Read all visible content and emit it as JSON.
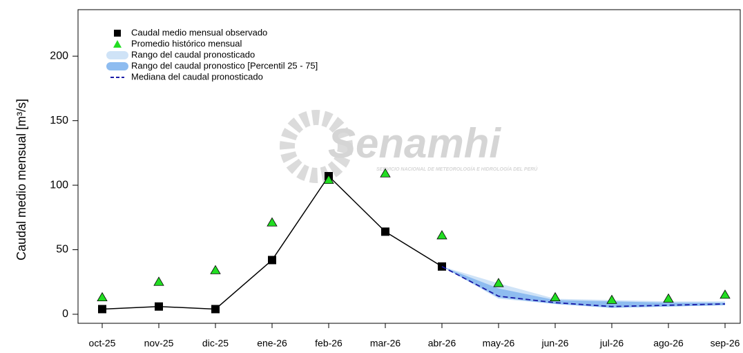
{
  "chart_data": {
    "type": "line",
    "ylabel": "Caudal medio mensual  [m³/s]",
    "watermark": {
      "title": "Senamhi",
      "subtitle": "SERVICIO NACIONAL DE METEOROLOGÍA E HIDROLOGÍA DEL PERÚ"
    },
    "categories": [
      "oct-25",
      "nov-25",
      "dic-25",
      "ene-26",
      "feb-26",
      "mar-26",
      "abr-26",
      "may-26",
      "jun-26",
      "jul-26",
      "ago-26",
      "sep-26"
    ],
    "ylim": [
      -7,
      236
    ],
    "yticks": [
      0,
      50,
      100,
      150,
      200
    ],
    "series": [
      {
        "name": "Caudal medio mensual observado",
        "style": "marker-line",
        "color": "#000000",
        "values": [
          4,
          6,
          4,
          42,
          107,
          64,
          37,
          null,
          null,
          null,
          null,
          null
        ]
      },
      {
        "name": "Promedio histórico mensual",
        "style": "triangle",
        "color": "#22dd22",
        "values": [
          13,
          25,
          34,
          71,
          104,
          109,
          61,
          24,
          13,
          11,
          12,
          15
        ]
      },
      {
        "name": "Rango del caudal pronosticado",
        "style": "band",
        "color": "#cfe3f7",
        "low": [
          null,
          null,
          null,
          null,
          null,
          null,
          37,
          12,
          8,
          5,
          6,
          7
        ],
        "high": [
          null,
          null,
          null,
          null,
          null,
          null,
          37,
          24,
          12,
          11,
          10,
          10
        ]
      },
      {
        "name": "Rango del caudal pronostico [Percentil 25 - 75]",
        "style": "band",
        "color": "#8ebcf0",
        "low": [
          null,
          null,
          null,
          null,
          null,
          null,
          37,
          13,
          8,
          5,
          6,
          7
        ],
        "high": [
          null,
          null,
          null,
          null,
          null,
          null,
          37,
          20,
          11,
          10,
          9,
          9
        ]
      },
      {
        "name": "Mediana del caudal pronosticado",
        "style": "dashed",
        "color": "#1a1aa6",
        "values": [
          null,
          null,
          null,
          null,
          null,
          null,
          37,
          14,
          9,
          6,
          7,
          8
        ]
      }
    ]
  }
}
